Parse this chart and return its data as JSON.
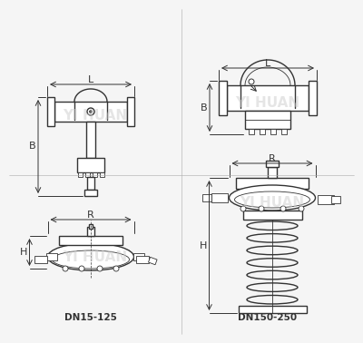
{
  "bg_color": "#f5f5f5",
  "line_color": "#333333",
  "dim_color": "#333333",
  "watermark_color": "#cccccc",
  "watermark_text": "YI HUAN",
  "label_dn1": "DN15-125",
  "label_dn2": "DN150-250",
  "dim_L": "L",
  "dim_B": "B",
  "dim_R": "R",
  "dim_H": "H",
  "fontsize_label": 7.5,
  "fontsize_dim": 8,
  "fontsize_watermark": 11
}
